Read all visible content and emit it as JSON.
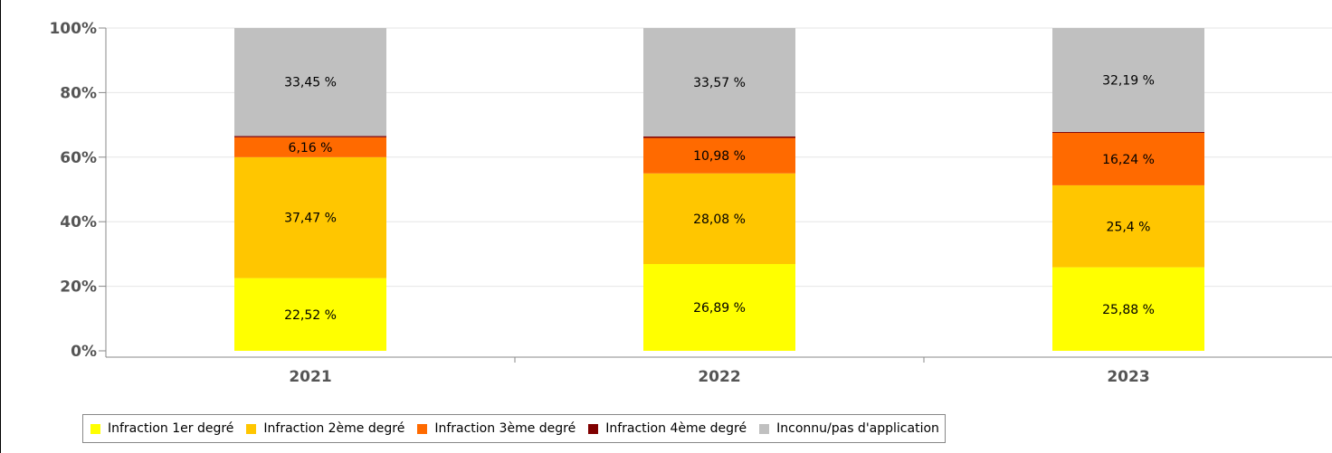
{
  "chart_data": {
    "type": "bar",
    "stacked": true,
    "categories": [
      "2021",
      "2022",
      "2023"
    ],
    "series": [
      {
        "name": "Infraction 1er degré",
        "color": "#ffff00",
        "values": [
          22.52,
          26.89,
          25.88
        ],
        "labels": [
          "22,52 %",
          "26,89 %",
          "25,88 %"
        ]
      },
      {
        "name": "Infraction 2ème degré",
        "color": "#ffc600",
        "values": [
          37.47,
          28.08,
          25.4
        ],
        "labels": [
          "37,47 %",
          "28,08 %",
          "25,4 %"
        ]
      },
      {
        "name": "Infraction 3ème degré",
        "color": "#ff6a00",
        "values": [
          6.16,
          10.98,
          16.24
        ],
        "labels": [
          "6,16 %",
          "10,98 %",
          "16,24 %"
        ]
      },
      {
        "name": "Infraction 4ème degré",
        "color": "#800000",
        "values": [
          0.4,
          0.48,
          0.29
        ],
        "labels": [
          "",
          "",
          ""
        ]
      },
      {
        "name": "Inconnu/pas d'application",
        "color": "#c0c0c0",
        "values": [
          33.45,
          33.57,
          32.19
        ],
        "labels": [
          "33,45 %",
          "33,57 %",
          "32,19 %"
        ]
      }
    ],
    "yticks": [
      "0%",
      "20%",
      "40%",
      "60%",
      "80%",
      "100%"
    ],
    "ylim": [
      0,
      100
    ],
    "grid": true,
    "legend_position": "bottom",
    "title": "",
    "xlabel": "",
    "ylabel": ""
  }
}
